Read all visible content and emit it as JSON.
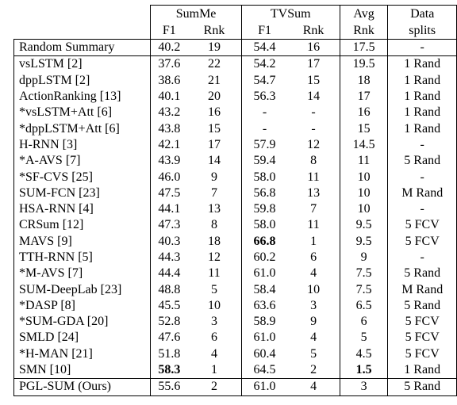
{
  "table": {
    "header": {
      "groups": [
        "SumMe",
        "TVSum",
        "Avg",
        "Data"
      ],
      "sub": [
        "F1",
        "Rnk",
        "F1",
        "Rnk",
        "Rnk",
        "splits"
      ]
    },
    "rows": [
      [
        {
          "text": "Random Summary"
        },
        {
          "text": "40.2"
        },
        {
          "text": "19"
        },
        {
          "text": "54.4"
        },
        {
          "text": "16"
        },
        {
          "text": "17.5"
        },
        {
          "text": "-"
        }
      ],
      [
        {
          "text": "vsLSTM [2]"
        },
        {
          "text": "37.6"
        },
        {
          "text": "22"
        },
        {
          "text": "54.2"
        },
        {
          "text": "17"
        },
        {
          "text": "19.5"
        },
        {
          "text": "1 Rand"
        }
      ],
      [
        {
          "text": "dppLSTM [2]"
        },
        {
          "text": "38.6"
        },
        {
          "text": "21"
        },
        {
          "text": "54.7"
        },
        {
          "text": "15"
        },
        {
          "text": "18"
        },
        {
          "text": "1 Rand"
        }
      ],
      [
        {
          "text": "ActionRanking [13]"
        },
        {
          "text": "40.1"
        },
        {
          "text": "20"
        },
        {
          "text": "56.3"
        },
        {
          "text": "14"
        },
        {
          "text": "17"
        },
        {
          "text": "1 Rand"
        }
      ],
      [
        {
          "text": "*vsLSTM+Att [6]"
        },
        {
          "text": "43.2"
        },
        {
          "text": "16"
        },
        {
          "text": "-"
        },
        {
          "text": "-"
        },
        {
          "text": "16"
        },
        {
          "text": "1 Rand"
        }
      ],
      [
        {
          "text": "*dppLSTM+Att [6]"
        },
        {
          "text": "43.8"
        },
        {
          "text": "15"
        },
        {
          "text": "-"
        },
        {
          "text": "-"
        },
        {
          "text": "15"
        },
        {
          "text": "1 Rand"
        }
      ],
      [
        {
          "text": "H-RNN [3]"
        },
        {
          "text": "42.1"
        },
        {
          "text": "17"
        },
        {
          "text": "57.9"
        },
        {
          "text": "12"
        },
        {
          "text": "14.5"
        },
        {
          "text": "-"
        }
      ],
      [
        {
          "text": "*A-AVS [7]"
        },
        {
          "text": "43.9"
        },
        {
          "text": "14"
        },
        {
          "text": "59.4"
        },
        {
          "text": "8"
        },
        {
          "text": "11"
        },
        {
          "text": "5 Rand"
        }
      ],
      [
        {
          "text": "*SF-CVS [25]"
        },
        {
          "text": "46.0"
        },
        {
          "text": "9"
        },
        {
          "text": "58.0"
        },
        {
          "text": "11"
        },
        {
          "text": "10"
        },
        {
          "text": "-"
        }
      ],
      [
        {
          "text": "SUM-FCN [23]"
        },
        {
          "text": "47.5"
        },
        {
          "text": "7"
        },
        {
          "text": "56.8"
        },
        {
          "text": "13"
        },
        {
          "text": "10"
        },
        {
          "text": "M Rand"
        }
      ],
      [
        {
          "text": "HSA-RNN [4]"
        },
        {
          "text": "44.1"
        },
        {
          "text": "13"
        },
        {
          "text": "59.8"
        },
        {
          "text": "7"
        },
        {
          "text": "10"
        },
        {
          "text": "-"
        }
      ],
      [
        {
          "text": "CRSum [12]"
        },
        {
          "text": "47.3"
        },
        {
          "text": "8"
        },
        {
          "text": "58.0"
        },
        {
          "text": "11"
        },
        {
          "text": "9.5"
        },
        {
          "text": "5 FCV"
        }
      ],
      [
        {
          "text": "MAVS [9]"
        },
        {
          "text": "40.3"
        },
        {
          "text": "18"
        },
        {
          "text": "66.8",
          "bold": true
        },
        {
          "text": "1"
        },
        {
          "text": "9.5"
        },
        {
          "text": "5 FCV"
        }
      ],
      [
        {
          "text": "TTH-RNN [5]"
        },
        {
          "text": "44.3"
        },
        {
          "text": "12"
        },
        {
          "text": "60.2"
        },
        {
          "text": "6"
        },
        {
          "text": "9"
        },
        {
          "text": "-"
        }
      ],
      [
        {
          "text": "*M-AVS [7]"
        },
        {
          "text": "44.4"
        },
        {
          "text": "11"
        },
        {
          "text": "61.0"
        },
        {
          "text": "4"
        },
        {
          "text": "7.5"
        },
        {
          "text": "5 Rand"
        }
      ],
      [
        {
          "text": "SUM-DeepLab [23]"
        },
        {
          "text": "48.8"
        },
        {
          "text": "5"
        },
        {
          "text": "58.4"
        },
        {
          "text": "10"
        },
        {
          "text": "7.5"
        },
        {
          "text": "M Rand"
        }
      ],
      [
        {
          "text": "*DASP [8]"
        },
        {
          "text": "45.5"
        },
        {
          "text": "10"
        },
        {
          "text": "63.6"
        },
        {
          "text": "3"
        },
        {
          "text": "6.5"
        },
        {
          "text": "5 Rand"
        }
      ],
      [
        {
          "text": "*SUM-GDA [20]"
        },
        {
          "text": "52.8"
        },
        {
          "text": "3"
        },
        {
          "text": "58.9"
        },
        {
          "text": "9"
        },
        {
          "text": "6"
        },
        {
          "text": "5 FCV"
        }
      ],
      [
        {
          "text": "SMLD [24]"
        },
        {
          "text": "47.6"
        },
        {
          "text": "6"
        },
        {
          "text": "61.0"
        },
        {
          "text": "4"
        },
        {
          "text": "5"
        },
        {
          "text": "5 FCV"
        }
      ],
      [
        {
          "text": "*H-MAN [21]"
        },
        {
          "text": "51.8"
        },
        {
          "text": "4"
        },
        {
          "text": "60.4"
        },
        {
          "text": "5"
        },
        {
          "text": "4.5"
        },
        {
          "text": "5 FCV"
        }
      ],
      [
        {
          "text": "SMN [10]"
        },
        {
          "text": "58.3",
          "bold": true
        },
        {
          "text": "1"
        },
        {
          "text": "64.5"
        },
        {
          "text": "2"
        },
        {
          "text": "1.5",
          "bold": true
        },
        {
          "text": "1 Rand"
        }
      ],
      [
        {
          "text": "PGL-SUM (Ours)"
        },
        {
          "text": "55.6"
        },
        {
          "text": "2"
        },
        {
          "text": "61.0"
        },
        {
          "text": "4"
        },
        {
          "text": "3"
        },
        {
          "text": "5 Rand"
        }
      ]
    ]
  }
}
